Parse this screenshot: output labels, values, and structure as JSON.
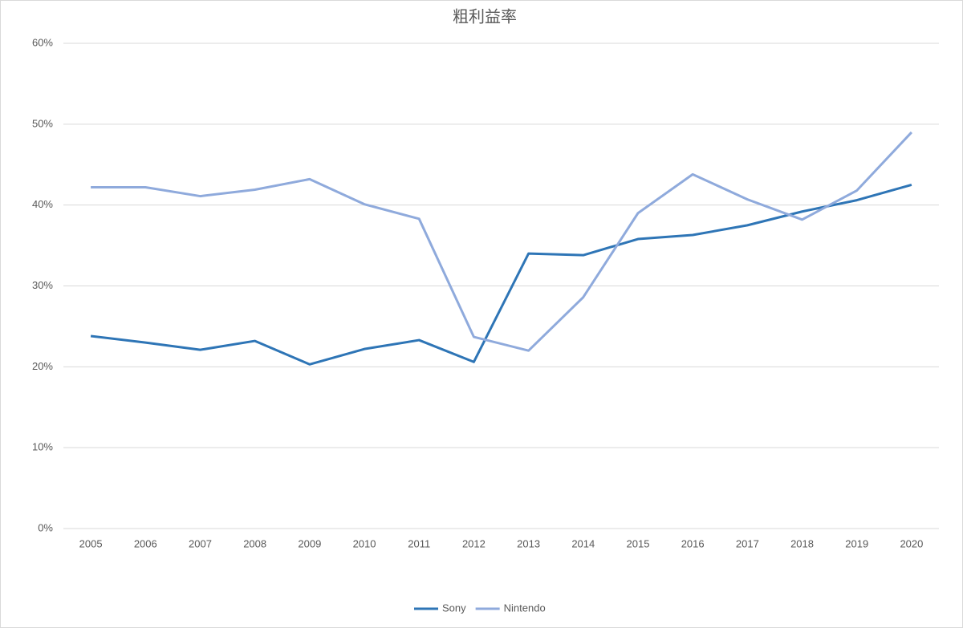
{
  "chart_data": {
    "type": "line",
    "title": "粗利益率",
    "categories": [
      "2005",
      "2006",
      "2007",
      "2008",
      "2009",
      "2010",
      "2011",
      "2012",
      "2013",
      "2014",
      "2015",
      "2016",
      "2017",
      "2018",
      "2019",
      "2020"
    ],
    "series": [
      {
        "name": "Sony",
        "color": "#2e75b6",
        "values": [
          23.8,
          23.0,
          22.1,
          23.2,
          20.3,
          22.2,
          23.3,
          20.6,
          34.0,
          33.8,
          35.8,
          36.3,
          37.5,
          39.2,
          40.6,
          42.5
        ]
      },
      {
        "name": "Nintendo",
        "color": "#8faadc",
        "values": [
          42.2,
          42.2,
          41.1,
          41.9,
          43.2,
          40.1,
          38.3,
          23.7,
          22.0,
          28.6,
          39.0,
          43.8,
          40.7,
          38.2,
          41.8,
          49.0
        ]
      }
    ],
    "ylim": [
      0,
      60
    ],
    "yticks": [
      {
        "value": 0,
        "label": "0%"
      },
      {
        "value": 10,
        "label": "10%"
      },
      {
        "value": 20,
        "label": "20%"
      },
      {
        "value": 30,
        "label": "30%"
      },
      {
        "value": 40,
        "label": "40%"
      },
      {
        "value": 50,
        "label": "50%"
      },
      {
        "value": 60,
        "label": "60%"
      }
    ],
    "grid": true,
    "legend": "bottom"
  }
}
